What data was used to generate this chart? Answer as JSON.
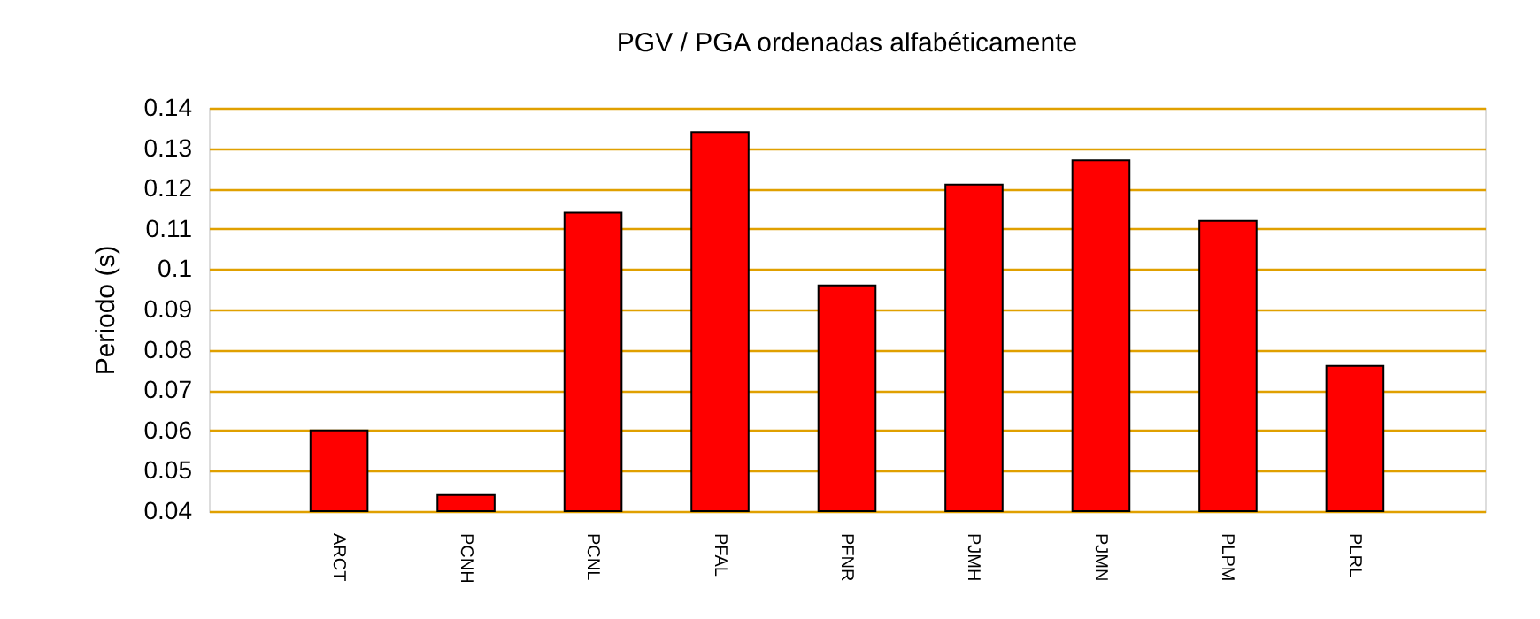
{
  "chart_data": {
    "type": "bar",
    "title": "PGV / PGA ordenadas alfabéticamente",
    "ylabel": "Periodo (s)",
    "categories": [
      "ARCT",
      "PCNH",
      "PCNL",
      "PFAL",
      "PFNR",
      "PJMH",
      "PJMN",
      "PLPM",
      "PLRL"
    ],
    "values": [
      0.06,
      0.044,
      0.114,
      0.134,
      0.096,
      0.121,
      0.127,
      0.112,
      0.076
    ],
    "color": "#ff0000",
    "ylim": [
      0.04,
      0.14
    ],
    "yticks": [
      0.04,
      0.05,
      0.06,
      0.07,
      0.08,
      0.09,
      0.1,
      0.11,
      0.12,
      0.13,
      0.14
    ],
    "grid": "y"
  }
}
